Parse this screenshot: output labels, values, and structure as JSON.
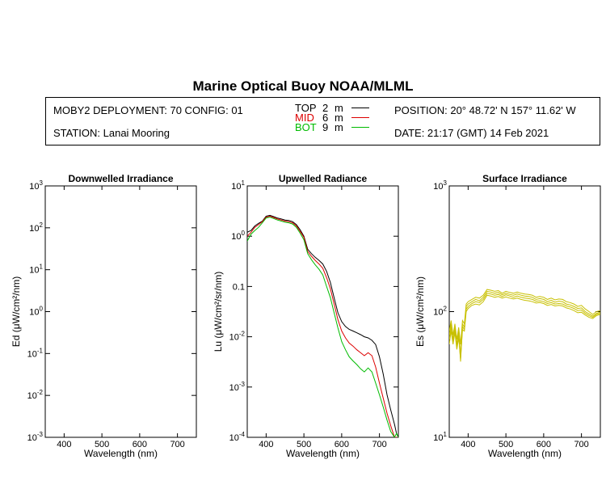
{
  "page": {
    "title": "Marine Optical Buoy NOAA/MLML"
  },
  "info": {
    "deployment": "MOBY2 DEPLOYMENT: 70 CONFIG: 01",
    "station": "STATION: Lanai Mooring",
    "position": "POSITION: 20° 48.72' N   157° 11.62' W",
    "date": "DATE: 21:17 (GMT) 14 Feb 2021",
    "legend": [
      {
        "label": "TOP",
        "depth": "2",
        "unit": "m",
        "color": "#000000"
      },
      {
        "label": "MID",
        "depth": "6",
        "unit": "m",
        "color": "#dd0000"
      },
      {
        "label": "BOT",
        "depth": "9",
        "unit": "m",
        "color": "#00bb00"
      }
    ]
  },
  "chart_data": [
    {
      "type": "line",
      "title": "Downwelled Irradiance",
      "xlabel": "Wavelength (nm)",
      "ylabel": "Ed  (μW/cm²/nm)",
      "xlim": [
        350,
        750
      ],
      "ylim": [
        0.001,
        1000
      ],
      "yscale": "log",
      "xticks": [
        400,
        500,
        600,
        700
      ],
      "yticks": [
        {
          "v": 0.001,
          "base": "10",
          "exp": "-3"
        },
        {
          "v": 0.01,
          "base": "10",
          "exp": "-2"
        },
        {
          "v": 0.1,
          "base": "10",
          "exp": "-1"
        },
        {
          "v": 1,
          "base": "10",
          "exp": "0"
        },
        {
          "v": 10,
          "base": "10",
          "exp": "1"
        },
        {
          "v": 100,
          "base": "10",
          "exp": "2"
        },
        {
          "v": 1000,
          "base": "10",
          "exp": "3"
        }
      ],
      "series": []
    },
    {
      "type": "line",
      "title": "Upwelled Radiance",
      "xlabel": "Wavelength (nm)",
      "ylabel": "Lu  (μW/cm²/sr/nm)",
      "xlim": [
        350,
        750
      ],
      "ylim": [
        0.0001,
        10
      ],
      "yscale": "log",
      "xticks": [
        400,
        500,
        600,
        700
      ],
      "yticks": [
        {
          "v": 0.0001,
          "base": "10",
          "exp": "-4"
        },
        {
          "v": 0.001,
          "base": "10",
          "exp": "-3"
        },
        {
          "v": 0.01,
          "base": "10",
          "exp": "-2"
        },
        {
          "v": 0.1,
          "base": "0.1",
          "exp": ""
        },
        {
          "v": 1,
          "base": "10",
          "exp": "0"
        },
        {
          "v": 10,
          "base": "10",
          "exp": "1"
        }
      ],
      "series": [
        {
          "name": "TOP",
          "color": "#000000",
          "x": [
            350,
            360,
            370,
            380,
            390,
            400,
            410,
            420,
            430,
            440,
            450,
            460,
            470,
            480,
            490,
            500,
            510,
            520,
            530,
            540,
            550,
            560,
            570,
            580,
            590,
            600,
            610,
            620,
            630,
            640,
            650,
            660,
            670,
            680,
            690,
            700,
            710,
            720,
            730,
            740,
            745,
            750
          ],
          "y": [
            1.2,
            1.3,
            1.6,
            1.8,
            2.0,
            2.5,
            2.6,
            2.45,
            2.3,
            2.2,
            2.1,
            2.05,
            1.95,
            1.7,
            1.35,
            1.0,
            0.55,
            0.45,
            0.38,
            0.33,
            0.28,
            0.2,
            0.12,
            0.06,
            0.03,
            0.02,
            0.016,
            0.014,
            0.013,
            0.012,
            0.011,
            0.01,
            0.0095,
            0.0085,
            0.007,
            0.004,
            0.0018,
            0.0007,
            0.00035,
            0.00018,
            0.00012,
            0.0001
          ]
        },
        {
          "name": "MID",
          "color": "#dd0000",
          "x": [
            350,
            360,
            370,
            380,
            390,
            400,
            410,
            420,
            430,
            440,
            450,
            460,
            470,
            480,
            490,
            500,
            510,
            520,
            530,
            540,
            550,
            560,
            570,
            580,
            590,
            600,
            610,
            620,
            630,
            640,
            650,
            660,
            670,
            680,
            690,
            700,
            710,
            720,
            730,
            740,
            745,
            750
          ],
          "y": [
            1.0,
            1.2,
            1.5,
            1.7,
            1.95,
            2.4,
            2.5,
            2.35,
            2.2,
            2.1,
            2.0,
            1.95,
            1.85,
            1.6,
            1.25,
            0.95,
            0.5,
            0.4,
            0.33,
            0.28,
            0.23,
            0.15,
            0.09,
            0.045,
            0.022,
            0.013,
            0.0095,
            0.0075,
            0.0065,
            0.0055,
            0.0048,
            0.0042,
            0.0048,
            0.0042,
            0.0025,
            0.0012,
            0.0006,
            0.0003,
            0.00017,
            0.0001,
            0.0001,
            0.0001
          ]
        },
        {
          "name": "BOT",
          "color": "#00bb00",
          "x": [
            350,
            360,
            370,
            380,
            390,
            400,
            410,
            420,
            430,
            440,
            450,
            460,
            470,
            480,
            490,
            500,
            510,
            520,
            530,
            540,
            550,
            560,
            570,
            580,
            590,
            600,
            610,
            620,
            630,
            640,
            650,
            660,
            670,
            680,
            690,
            700,
            710,
            720,
            730,
            740,
            745,
            750
          ],
          "y": [
            0.8,
            1.1,
            1.3,
            1.5,
            1.85,
            2.3,
            2.4,
            2.25,
            2.1,
            2.0,
            1.9,
            1.85,
            1.75,
            1.5,
            1.15,
            0.85,
            0.45,
            0.34,
            0.27,
            0.22,
            0.17,
            0.1,
            0.06,
            0.03,
            0.015,
            0.008,
            0.0055,
            0.004,
            0.0033,
            0.0028,
            0.0023,
            0.002,
            0.0024,
            0.002,
            0.0012,
            0.0007,
            0.0004,
            0.00022,
            0.00013,
            0.0001,
            0.00012,
            0.0001
          ]
        }
      ]
    },
    {
      "type": "line",
      "title": "Surface Irradiance",
      "xlabel": "Wavelength (nm)",
      "ylabel": "Es  (μW/cm²/nm)",
      "xlim": [
        350,
        750
      ],
      "ylim": [
        10,
        1000
      ],
      "yscale": "log",
      "xticks": [
        400,
        500,
        600,
        700
      ],
      "yticks": [
        {
          "v": 10,
          "base": "10",
          "exp": "1"
        },
        {
          "v": 100,
          "base": "10",
          "exp": "2"
        },
        {
          "v": 1000,
          "base": "10",
          "exp": "3"
        }
      ],
      "series": [
        {
          "name": "",
          "color": "#c8c000",
          "x": [
            350,
            355,
            360,
            365,
            370,
            375,
            380,
            385,
            390,
            395,
            400,
            410,
            420,
            430,
            440,
            450,
            460,
            470,
            480,
            490,
            500,
            510,
            520,
            530,
            540,
            550,
            560,
            570,
            580,
            590,
            600,
            610,
            620,
            630,
            640,
            650,
            660,
            670,
            680,
            690,
            700,
            710,
            720,
            730,
            740,
            750
          ],
          "y": [
            70,
            85,
            65,
            80,
            60,
            75,
            55,
            85,
            80,
            115,
            120,
            125,
            130,
            128,
            135,
            150,
            148,
            145,
            147,
            140,
            145,
            142,
            140,
            143,
            140,
            138,
            137,
            135,
            130,
            132,
            130,
            125,
            128,
            124,
            126,
            125,
            120,
            118,
            115,
            110,
            112,
            105,
            100,
            95,
            100,
            102
          ]
        },
        {
          "name": "",
          "color": "#c8c000",
          "x": [
            350,
            355,
            360,
            365,
            370,
            375,
            380,
            385,
            390,
            395,
            400,
            410,
            420,
            430,
            440,
            450,
            460,
            470,
            480,
            490,
            500,
            510,
            520,
            530,
            540,
            550,
            560,
            570,
            580,
            590,
            600,
            610,
            620,
            630,
            640,
            650,
            660,
            670,
            680,
            690,
            700,
            710,
            720,
            730,
            740,
            750
          ],
          "y": [
            65,
            80,
            60,
            75,
            55,
            70,
            45,
            80,
            75,
            110,
            115,
            120,
            125,
            122,
            130,
            145,
            143,
            140,
            142,
            136,
            140,
            137,
            135,
            138,
            135,
            133,
            132,
            130,
            125,
            127,
            125,
            120,
            123,
            119,
            121,
            120,
            115,
            113,
            110,
            106,
            107,
            100,
            96,
            92,
            97,
            99
          ]
        },
        {
          "name": "",
          "color": "#c8c000",
          "x": [
            350,
            355,
            360,
            365,
            370,
            375,
            380,
            385,
            390,
            395,
            400,
            410,
            420,
            430,
            440,
            450,
            460,
            470,
            480,
            490,
            500,
            510,
            520,
            530,
            540,
            550,
            560,
            570,
            580,
            590,
            600,
            610,
            620,
            630,
            640,
            650,
            660,
            670,
            680,
            690,
            700,
            710,
            720,
            730,
            740,
            750
          ],
          "y": [
            60,
            75,
            58,
            72,
            52,
            66,
            40,
            76,
            72,
            105,
            110,
            116,
            120,
            118,
            125,
            140,
            138,
            135,
            137,
            132,
            136,
            133,
            130,
            133,
            130,
            128,
            127,
            125,
            121,
            122,
            120,
            116,
            118,
            115,
            116,
            115,
            111,
            109,
            106,
            102,
            103,
            97,
            93,
            90,
            95,
            97
          ]
        },
        {
          "name": "",
          "color": "#c8c000",
          "x": [
            350,
            355,
            360,
            365,
            370,
            375,
            380,
            385,
            390,
            395,
            400,
            410,
            420,
            430,
            440,
            450,
            460,
            470,
            480,
            490,
            500,
            510,
            520,
            530,
            540,
            550,
            560,
            570,
            580,
            590,
            600,
            610,
            620,
            630,
            640,
            650,
            660,
            670,
            680,
            690,
            700,
            710,
            720,
            730,
            740,
            750
          ],
          "y": [
            55,
            70,
            55,
            68,
            50,
            62,
            42,
            72,
            70,
            100,
            106,
            112,
            115,
            113,
            120,
            135,
            133,
            130,
            132,
            128,
            131,
            128,
            126,
            128,
            125,
            123,
            122,
            120,
            117,
            118,
            116,
            112,
            114,
            111,
            112,
            111,
            107,
            105,
            102,
            98,
            99,
            94,
            90,
            88,
            93,
            95
          ]
        }
      ]
    }
  ]
}
